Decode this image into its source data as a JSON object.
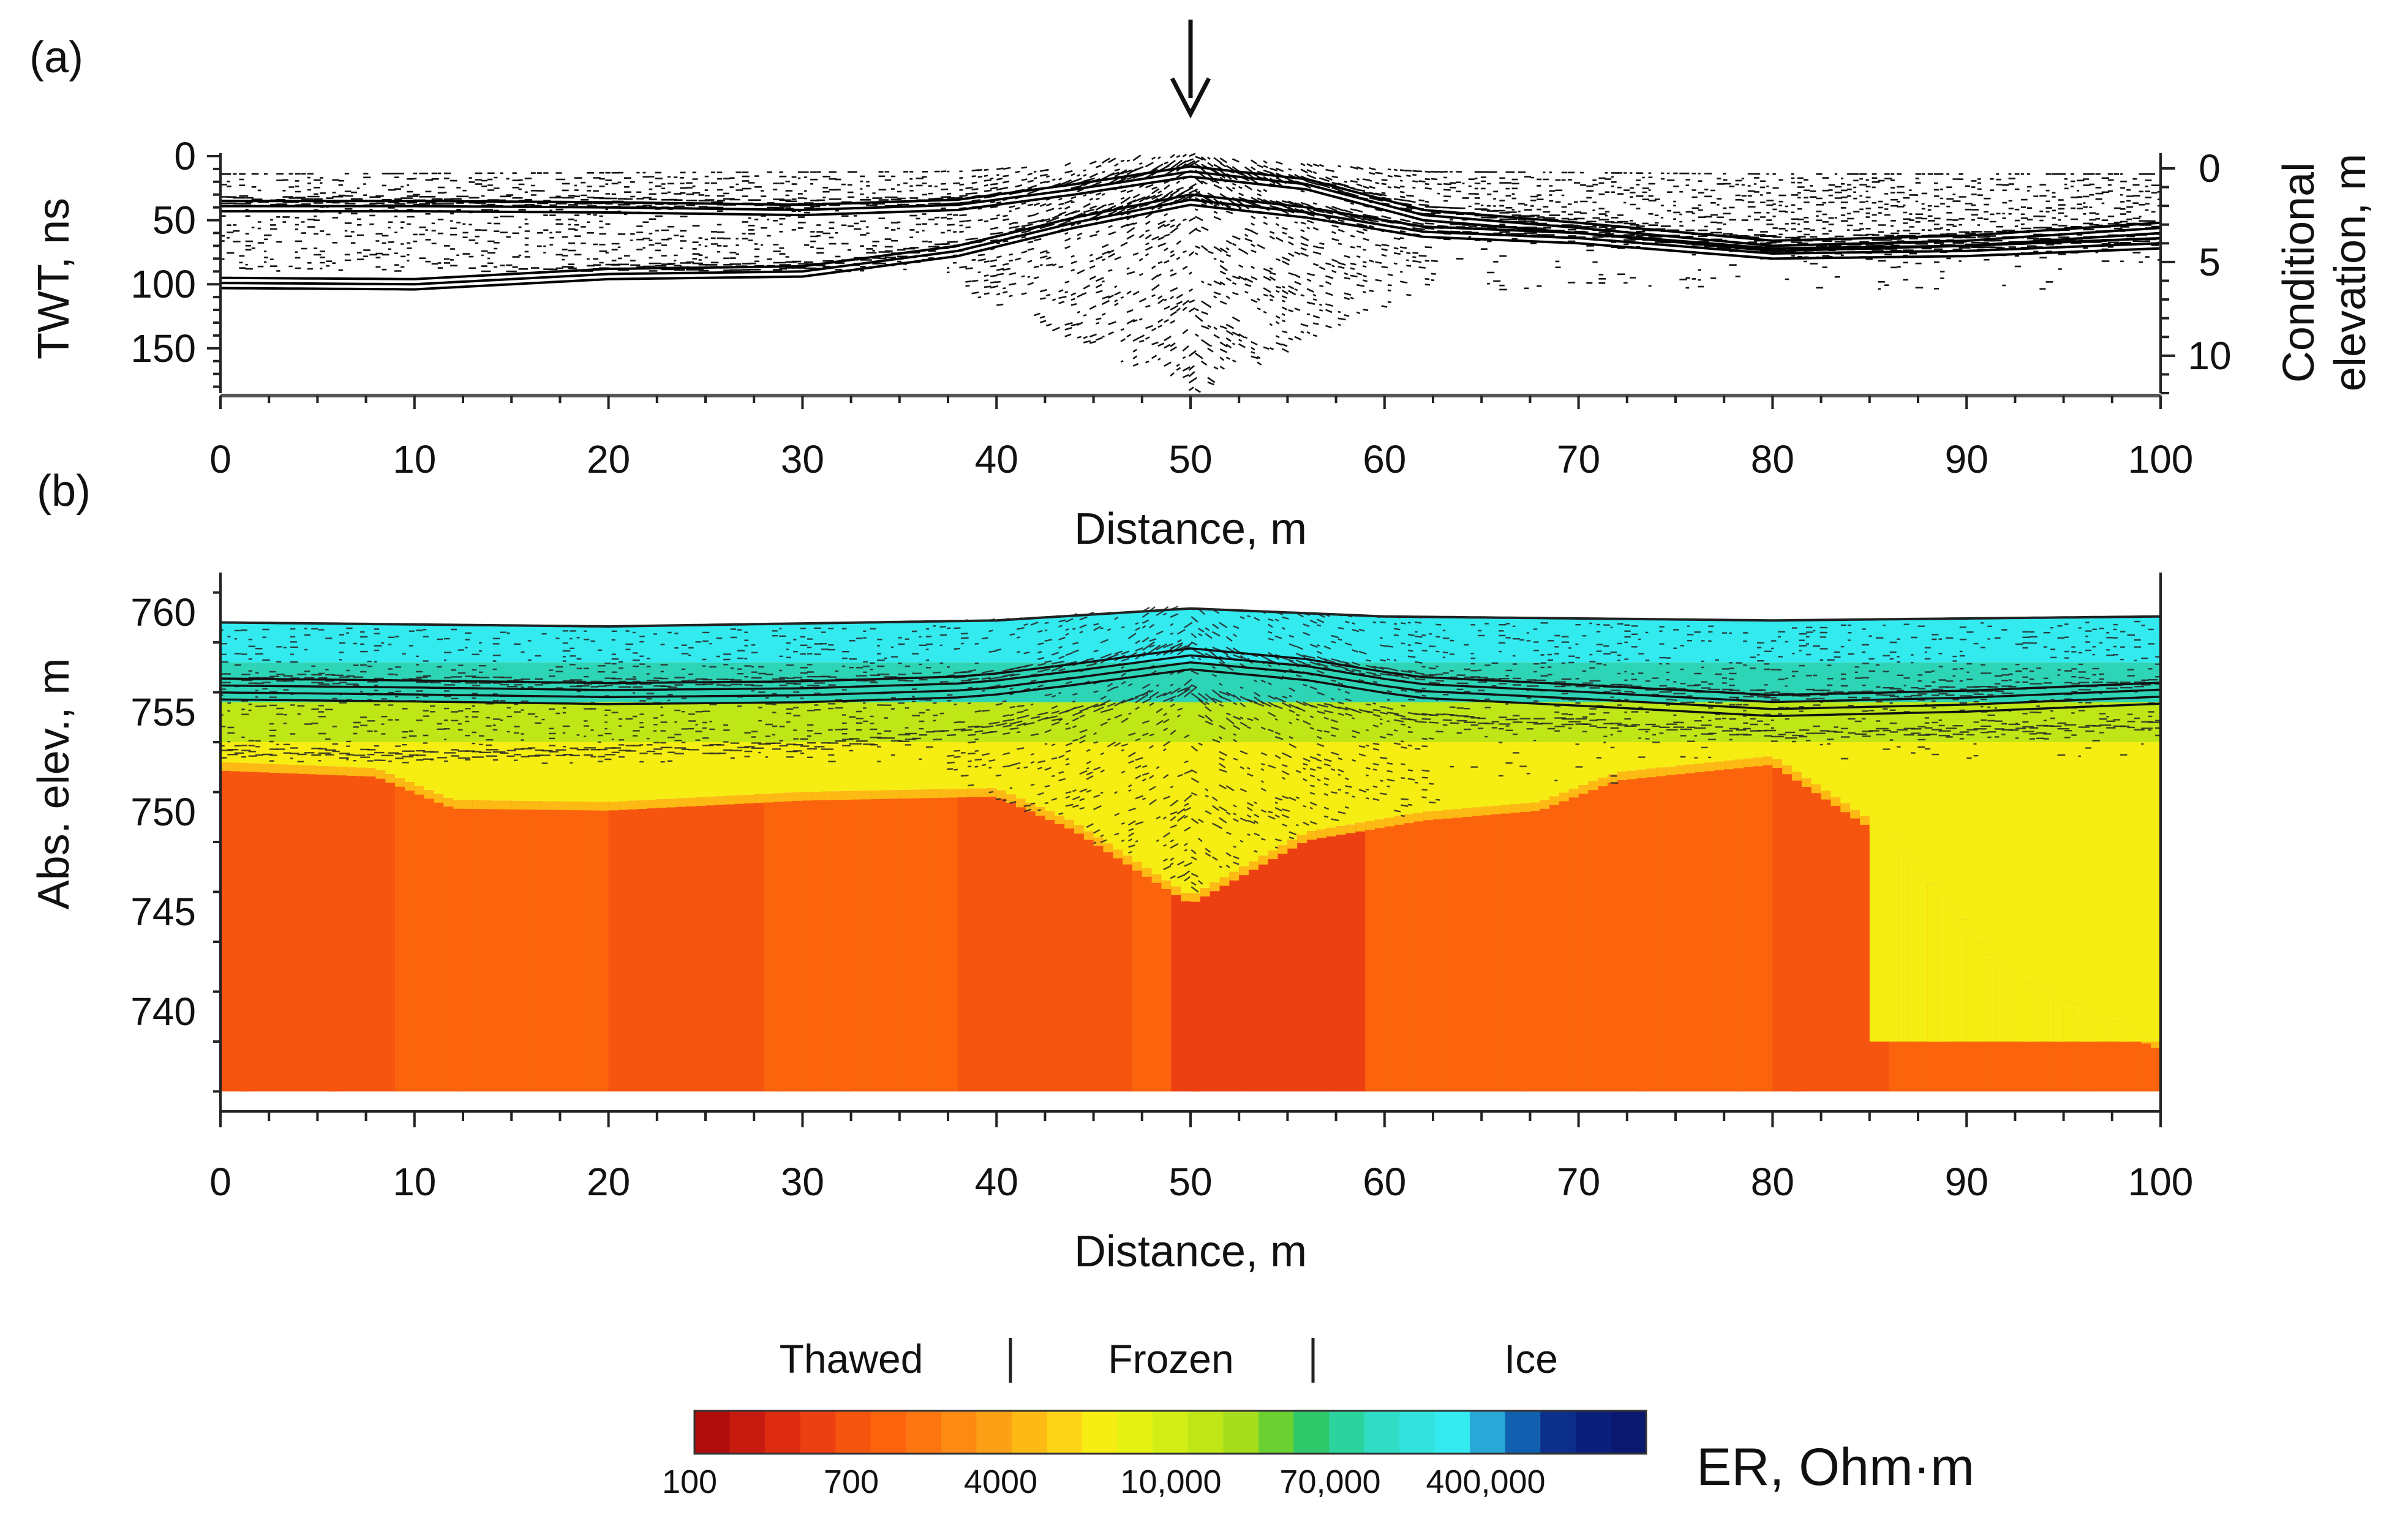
{
  "panel_a": {
    "label": "(a)",
    "left_axis_title": "TWT, ns",
    "right_axis_title_line1": "Conditional",
    "right_axis_title_line2": "elevation, m",
    "x_axis_title": "Distance, m"
  },
  "panel_b": {
    "label": "(b)",
    "y_axis_title": "Abs. elev., m",
    "x_axis_title": "Distance, m"
  },
  "legend": {
    "class_labels": [
      "Thawed",
      "Frozen",
      "Ice"
    ],
    "tick_labels": [
      "100",
      "700",
      "4000",
      "10,000",
      "70,000",
      "400,000"
    ],
    "unit": "ER, Ohm·m",
    "colors": [
      "#b10d0d",
      "#c81b10",
      "#dd2c10",
      "#ec4012",
      "#f5550f",
      "#fb640d",
      "#fd7610",
      "#fd8a12",
      "#fca015",
      "#fdba14",
      "#fdd516",
      "#f6ee12",
      "#e6f312",
      "#d2ee14",
      "#c0e616",
      "#a6de1e",
      "#6bd032",
      "#2ec86a",
      "#2ad49c",
      "#30dcc4",
      "#32e2dc",
      "#33eaef",
      "#27a8d6",
      "#1160b0",
      "#0b2f8a",
      "#0a1f7a",
      "#0a1870"
    ]
  },
  "colors": {
    "thawed": "#f5550f",
    "frozen_surface": "#f6ee12",
    "ice_surface": "#33eaef",
    "radargram": "#111111"
  },
  "chart_data": [
    {
      "type": "heatmap",
      "panel": "a",
      "description_type": "GPR radargram (wiggle/variable-area traces)",
      "xlabel": "Distance, m",
      "ylabel": "TWT, ns",
      "y2label": "Conditional elevation, m",
      "xlim": [
        0,
        100
      ],
      "ylim": [
        0,
        185
      ],
      "y2lim": [
        0,
        12
      ],
      "x_ticks": [
        0,
        10,
        20,
        30,
        40,
        50,
        60,
        70,
        80,
        90,
        100
      ],
      "y_ticks": [
        0,
        50,
        100,
        150
      ],
      "y2_ticks": [
        0,
        5,
        10
      ],
      "annotation": {
        "type": "arrow",
        "x": 50
      },
      "reflectors_twt_ns": [
        {
          "x": [
            0,
            10,
            20,
            30,
            38,
            44,
            50,
            56,
            62,
            70,
            80,
            90,
            100
          ],
          "y": [
            35,
            35,
            36,
            38,
            34,
            22,
            8,
            18,
            42,
            52,
            66,
            62,
            52
          ]
        },
        {
          "x": [
            0,
            10,
            20,
            30,
            38,
            44,
            50,
            56,
            62,
            70,
            80,
            90,
            100
          ],
          "y": [
            95,
            96,
            88,
            86,
            70,
            48,
            30,
            40,
            55,
            60,
            72,
            70,
            64
          ]
        }
      ]
    },
    {
      "type": "heatmap",
      "panel": "b",
      "description_type": "Electrical resistivity section with overlaid radargram",
      "xlabel": "Distance, m",
      "ylabel": "Abs. elev., m",
      "xlim": [
        0,
        100
      ],
      "ylim": [
        735,
        762
      ],
      "x_ticks": [
        0,
        10,
        20,
        30,
        40,
        50,
        60,
        70,
        80,
        90,
        100
      ],
      "y_ticks": [
        740,
        745,
        750,
        755,
        760
      ],
      "surface_elevation_m": {
        "x": [
          0,
          20,
          40,
          50,
          60,
          80,
          100
        ],
        "y": [
          759.5,
          759.3,
          759.6,
          760.2,
          759.8,
          759.6,
          759.8
        ]
      },
      "ice_frozen_layer_bottom_m": {
        "x": [
          0,
          8,
          12,
          20,
          30,
          40,
          44,
          50,
          56,
          62,
          68,
          72,
          80,
          86,
          92,
          100
        ],
        "y": [
          752.5,
          752.2,
          750.6,
          750.5,
          751.0,
          751.2,
          749.5,
          745.8,
          749.0,
          750.0,
          750.5,
          752.0,
          752.8,
          749.0,
          742.0,
          738.5
        ]
      },
      "resistivity_zones_ohm_m": [
        {
          "name": "Thawed",
          "range": [
            100,
            4000
          ]
        },
        {
          "name": "Frozen",
          "range": [
            4000,
            70000
          ]
        },
        {
          "name": "Ice",
          "range": [
            70000,
            1000000
          ]
        }
      ],
      "colorbar_ticks": [
        100,
        700,
        4000,
        10000,
        70000,
        400000
      ]
    }
  ]
}
